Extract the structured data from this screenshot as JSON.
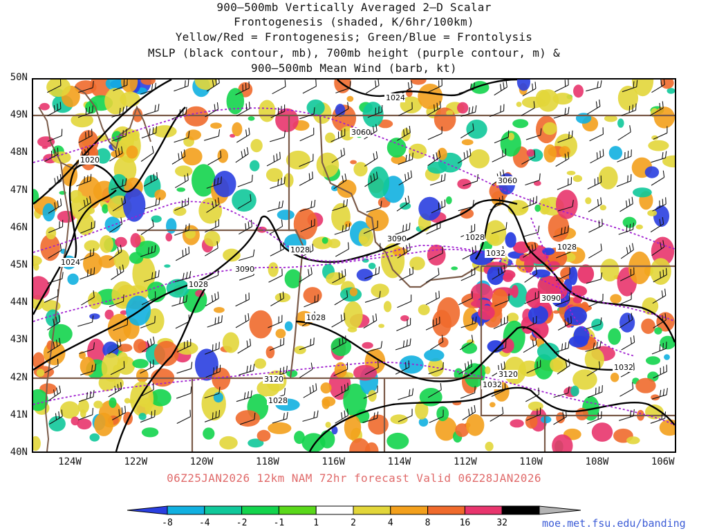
{
  "titles": [
    "900–500mb Vertically Averaged 2–D Scalar",
    "Frontogenesis (shaded, K/6hr/100km)",
    "Yellow/Red = Frontogenesis;  Green/Blue = Frontolysis",
    "MSLP (black contour, mb), 700mb height (purple contour, m) &",
    "900–500mb Mean Wind (barb, kt)"
  ],
  "lat_labels": [
    "50N",
    "49N",
    "48N",
    "47N",
    "46N",
    "45N",
    "44N",
    "43N",
    "42N",
    "41N",
    "40N"
  ],
  "lon_labels": [
    "124W",
    "122W",
    "120W",
    "118W",
    "116W",
    "114W",
    "112W",
    "110W",
    "108W",
    "106W"
  ],
  "mslp_labels": [
    "1024",
    "1020",
    "1024",
    "1028",
    "1028",
    "1028",
    "1028",
    "1032",
    "1028",
    "1032",
    "1032",
    "1028"
  ],
  "height_labels": [
    "3060",
    "3060",
    "3090",
    "3090",
    "3090",
    "3120",
    "3120"
  ],
  "forecast_line": "06Z25JAN2026 12km NAM 72hr forecast Valid 06Z28JAN2026",
  "colorbar": {
    "ticks": [
      "-8",
      "-4",
      "-2",
      "-1",
      "1",
      "2",
      "4",
      "8",
      "16",
      "32"
    ],
    "colors": [
      "#2a3fe0",
      "#11b0e0",
      "#10c89a",
      "#13d44d",
      "#5ad81a",
      "#ffffff",
      "#e2d63a",
      "#f3a01c",
      "#f06a2c",
      "#e8356d",
      "#000000",
      "#b4b4b4"
    ]
  },
  "credit": "moe.met.fsu.edu/banding"
}
